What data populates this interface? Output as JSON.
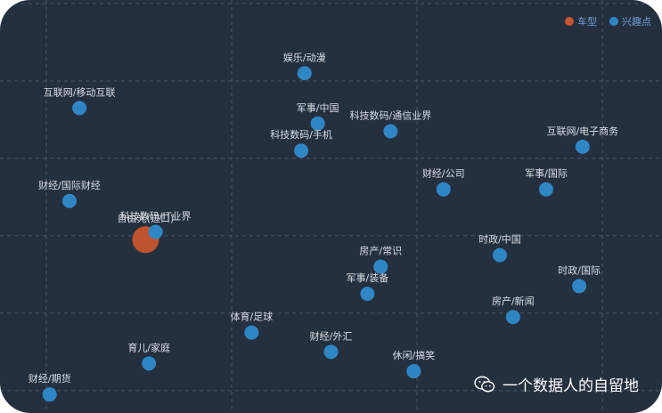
{
  "chart_data": {
    "type": "scatter",
    "title": "",
    "xlabel": "",
    "ylabel": "",
    "grid": true,
    "legend_position": "top-right",
    "series": [
      {
        "name": "车型",
        "color": "#c8552f",
        "points": [
          {
            "label": "自由光(进口)",
            "x": 2.2,
            "y": 2.55
          }
        ]
      },
      {
        "name": "兴趣点",
        "color": "#2f86c5",
        "points": [
          {
            "label": "娱乐/动漫",
            "x": 4.6,
            "y": 4.7
          },
          {
            "label": "互联网/移动互联",
            "x": 1.2,
            "y": 4.25
          },
          {
            "label": "军事/中国",
            "x": 4.8,
            "y": 4.05
          },
          {
            "label": "科技数码/通信业界",
            "x": 5.9,
            "y": 3.95
          },
          {
            "label": "科技数码/手机",
            "x": 4.55,
            "y": 3.7
          },
          {
            "label": "互联网/电子商务",
            "x": 8.8,
            "y": 3.75
          },
          {
            "label": "财经/国际财经",
            "x": 1.05,
            "y": 3.05
          },
          {
            "label": "财经/公司",
            "x": 6.7,
            "y": 3.2
          },
          {
            "label": "军事/国际",
            "x": 8.25,
            "y": 3.2
          },
          {
            "label": "科技数码/IT业界",
            "x": 2.35,
            "y": 2.65
          },
          {
            "label": "时政/中国",
            "x": 7.55,
            "y": 2.35
          },
          {
            "label": "房产/常识",
            "x": 5.75,
            "y": 2.2
          },
          {
            "label": "时政/国际",
            "x": 8.75,
            "y": 1.95
          },
          {
            "label": "军事/装备",
            "x": 5.55,
            "y": 1.85
          },
          {
            "label": "房产/新闻",
            "x": 7.75,
            "y": 1.55
          },
          {
            "label": "体育/足球",
            "x": 3.8,
            "y": 1.35
          },
          {
            "label": "财经/外汇",
            "x": 5.0,
            "y": 1.1
          },
          {
            "label": "育儿/家庭",
            "x": 2.25,
            "y": 0.95
          },
          {
            "label": "休闲/搞笑",
            "x": 6.25,
            "y": 0.85
          },
          {
            "label": "财经/期货",
            "x": 0.75,
            "y": 0.55
          }
        ]
      }
    ],
    "xlim": [
      0,
      10
    ],
    "ylim": [
      0,
      5.6
    ],
    "x_grid_values": [
      0.7,
      3.5,
      6.3,
      9.1
    ],
    "y_grid_values": [
      0.6,
      1.6,
      2.6,
      3.6,
      4.6,
      5.6
    ]
  },
  "colors": {
    "background": "#25303f",
    "grid": "#4a5669",
    "label_text": "#d9dde3",
    "legend_text": "#6f9fd0"
  },
  "watermark": {
    "icon": "wechat-icon",
    "text": "一个数据人的自留地"
  }
}
